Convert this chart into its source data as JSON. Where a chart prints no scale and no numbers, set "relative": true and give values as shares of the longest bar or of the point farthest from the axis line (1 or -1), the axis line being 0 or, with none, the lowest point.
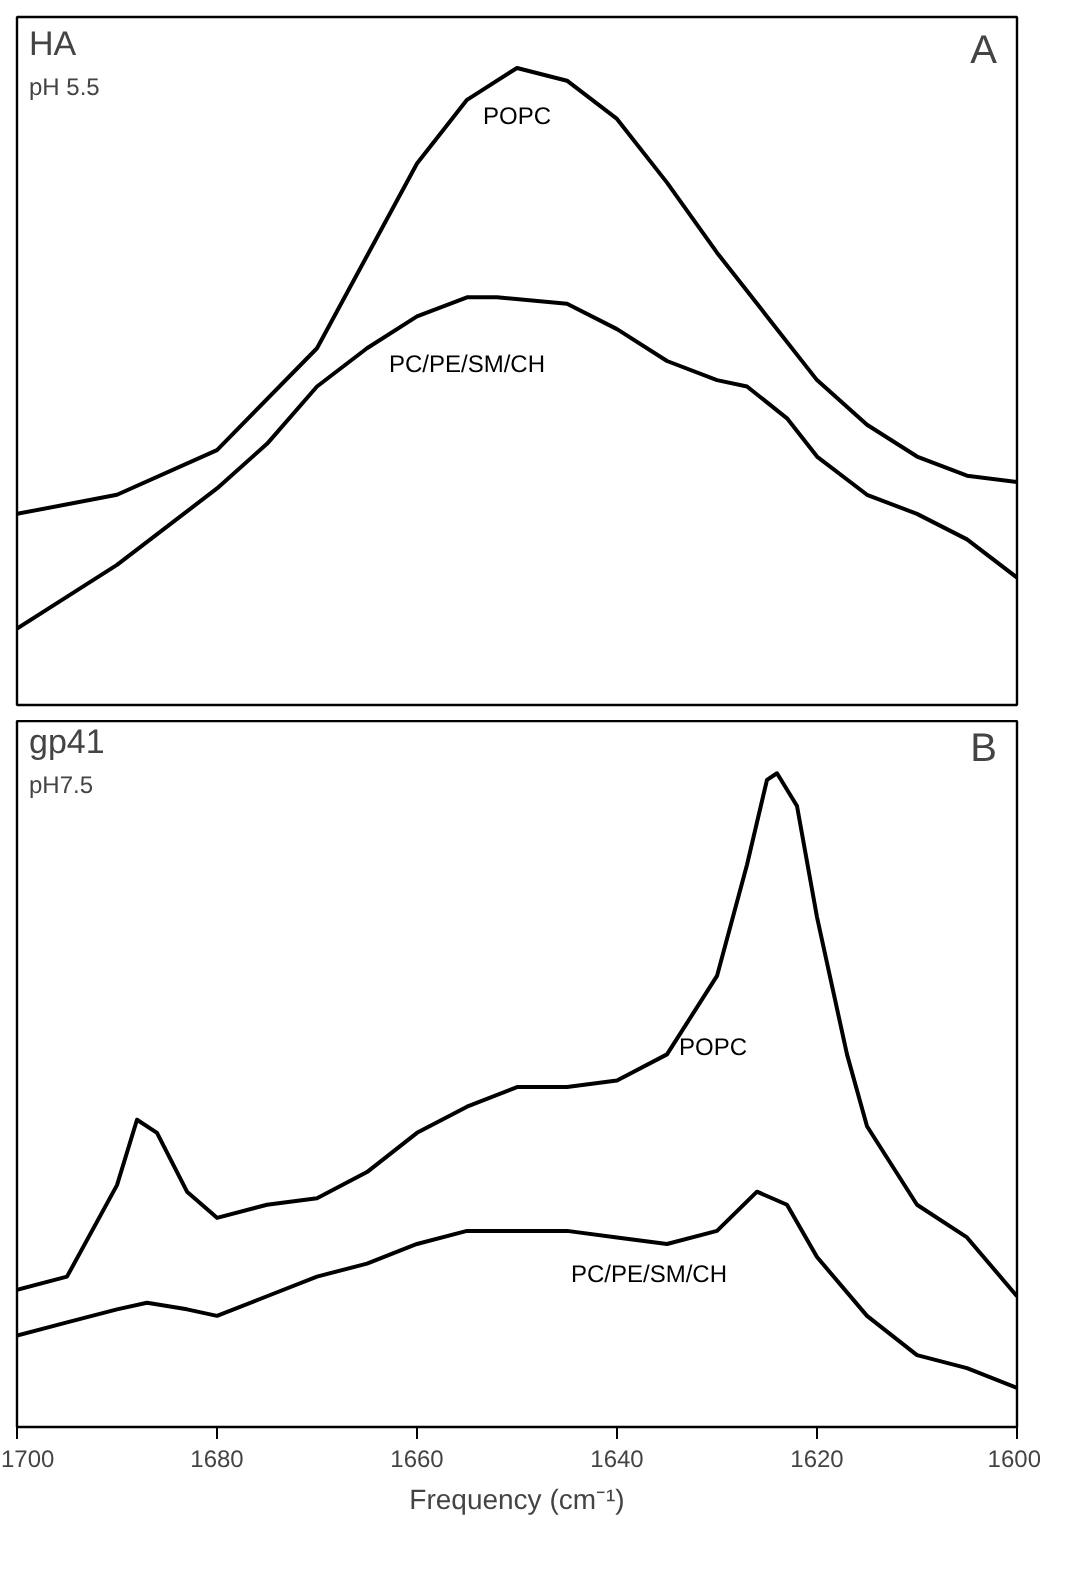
{
  "chart_data": [
    {
      "type": "line",
      "relative": true,
      "xlim": [
        1700,
        1600
      ],
      "xticks": [
        1700,
        1680,
        1660,
        1640,
        1620,
        1600
      ],
      "tick_labels": false,
      "grid": false,
      "marker": "none",
      "line_style": "solid",
      "annotations": [
        "HA",
        "pH 5.5",
        "A"
      ],
      "series": [
        {
          "name": "POPC",
          "color": "#000000",
          "x": [
            1700,
            1690,
            1680,
            1670,
            1660,
            1655,
            1650,
            1645,
            1640,
            1635,
            1630,
            1625,
            1620,
            1615,
            1610,
            1605,
            1600
          ],
          "values": [
            0.3,
            0.33,
            0.4,
            0.56,
            0.85,
            0.95,
            1.0,
            0.98,
            0.92,
            0.82,
            0.71,
            0.61,
            0.51,
            0.44,
            0.39,
            0.36,
            0.35
          ]
        },
        {
          "name": "PC/PE/SM/CH",
          "color": "#000000",
          "x": [
            1700,
            1690,
            1680,
            1675,
            1670,
            1665,
            1660,
            1655,
            1652,
            1645,
            1640,
            1635,
            1630,
            1627,
            1623,
            1620,
            1615,
            1610,
            1605,
            1600
          ],
          "values": [
            0.12,
            0.22,
            0.34,
            0.41,
            0.5,
            0.56,
            0.61,
            0.64,
            0.64,
            0.63,
            0.59,
            0.54,
            0.51,
            0.5,
            0.45,
            0.39,
            0.33,
            0.3,
            0.26,
            0.2
          ]
        }
      ]
    },
    {
      "type": "line",
      "relative": true,
      "xlim": [
        1700,
        1600
      ],
      "xticks": [
        1700,
        1680,
        1660,
        1640,
        1620,
        1600
      ],
      "tick_labels": "x",
      "xlabel": "Frequency (cm⁻¹)",
      "grid": false,
      "marker": "none",
      "line_style": "solid",
      "annotations": [
        "gp41",
        "pH7.5",
        "B"
      ],
      "series": [
        {
          "name": "POPC",
          "color": "#000000",
          "x": [
            1700,
            1695,
            1690,
            1688,
            1686,
            1683,
            1680,
            1675,
            1670,
            1665,
            1660,
            1655,
            1650,
            1645,
            1640,
            1635,
            1630,
            1627,
            1625,
            1624,
            1622,
            1620,
            1617,
            1615,
            1610,
            1605,
            1600
          ],
          "values": [
            0.21,
            0.23,
            0.37,
            0.47,
            0.45,
            0.36,
            0.32,
            0.34,
            0.35,
            0.39,
            0.45,
            0.49,
            0.52,
            0.52,
            0.53,
            0.57,
            0.69,
            0.86,
            0.99,
            1.0,
            0.95,
            0.78,
            0.57,
            0.46,
            0.34,
            0.29,
            0.2
          ]
        },
        {
          "name": "PC/PE/SM/CH",
          "color": "#000000",
          "x": [
            1700,
            1695,
            1690,
            1687,
            1683,
            1680,
            1675,
            1670,
            1665,
            1660,
            1655,
            1650,
            1645,
            1640,
            1635,
            1630,
            1626,
            1623,
            1620,
            1615,
            1610,
            1605,
            1600
          ],
          "values": [
            0.14,
            0.16,
            0.18,
            0.19,
            0.18,
            0.17,
            0.2,
            0.23,
            0.25,
            0.28,
            0.3,
            0.3,
            0.3,
            0.29,
            0.28,
            0.3,
            0.36,
            0.34,
            0.26,
            0.17,
            0.11,
            0.09,
            0.06
          ]
        }
      ]
    }
  ]
}
